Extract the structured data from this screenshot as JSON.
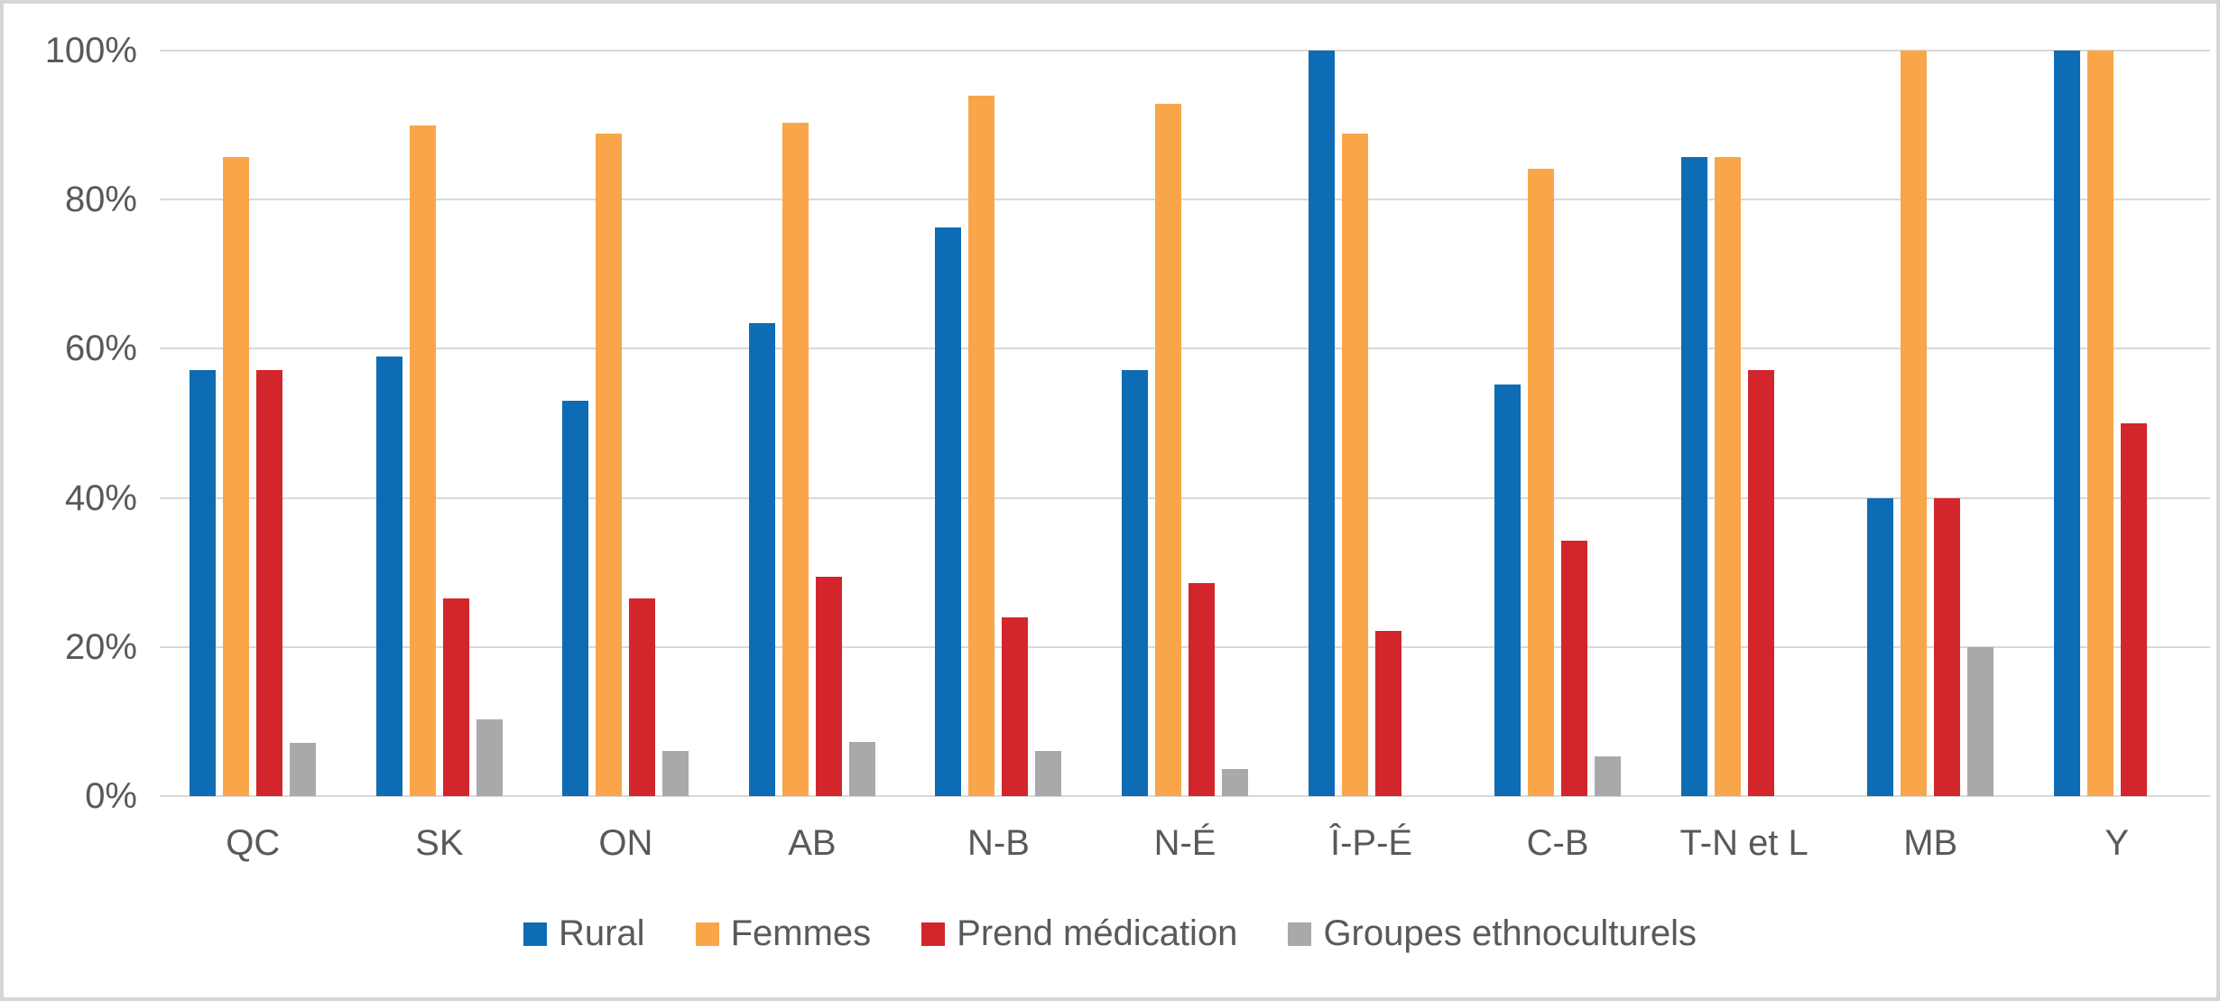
{
  "frame": {
    "background_color": "#ffffff",
    "border_color": "#d5d5d5"
  },
  "styles": {
    "axis_text_color": "#595959",
    "gridline_color": "#d9d9d9"
  },
  "chart_data": {
    "type": "bar",
    "title": "",
    "categories": [
      "QC",
      "SK",
      "ON",
      "AB",
      "N-B",
      "N-É",
      "Î-P-É",
      "C-B",
      "T-N et L",
      "MB",
      "Y"
    ],
    "series": [
      {
        "name": "Rural",
        "color": "#0d6cb4",
        "values": [
          57.1,
          59.0,
          53.0,
          63.4,
          76.3,
          57.1,
          100,
          55.2,
          85.7,
          40,
          100
        ]
      },
      {
        "name": "Femmes",
        "color": "#f9a64a",
        "values": [
          85.7,
          90.0,
          88.9,
          90.3,
          94.0,
          92.9,
          88.9,
          84.2,
          85.7,
          100,
          100
        ]
      },
      {
        "name": "Prend médication",
        "color": "#d2262c",
        "values": [
          57.1,
          26.5,
          26.5,
          29.4,
          24.0,
          28.6,
          22.2,
          34.3,
          57.1,
          40,
          50
        ]
      },
      {
        "name": "Groupes ethnoculturels",
        "color": "#a9a9a9",
        "values": [
          7.1,
          10.3,
          6.0,
          7.3,
          6.0,
          3.6,
          0,
          5.3,
          0,
          20,
          0
        ]
      }
    ],
    "y_axis": {
      "min": 0,
      "max": 100,
      "unit": "%",
      "ticks": [
        {
          "value": 0,
          "label": "0%"
        },
        {
          "value": 20,
          "label": "20%"
        },
        {
          "value": 40,
          "label": "40%"
        },
        {
          "value": 60,
          "label": "60%"
        },
        {
          "value": 80,
          "label": "80%"
        },
        {
          "value": 100,
          "label": "100%"
        }
      ]
    },
    "grid": true,
    "legend_position": "bottom"
  }
}
